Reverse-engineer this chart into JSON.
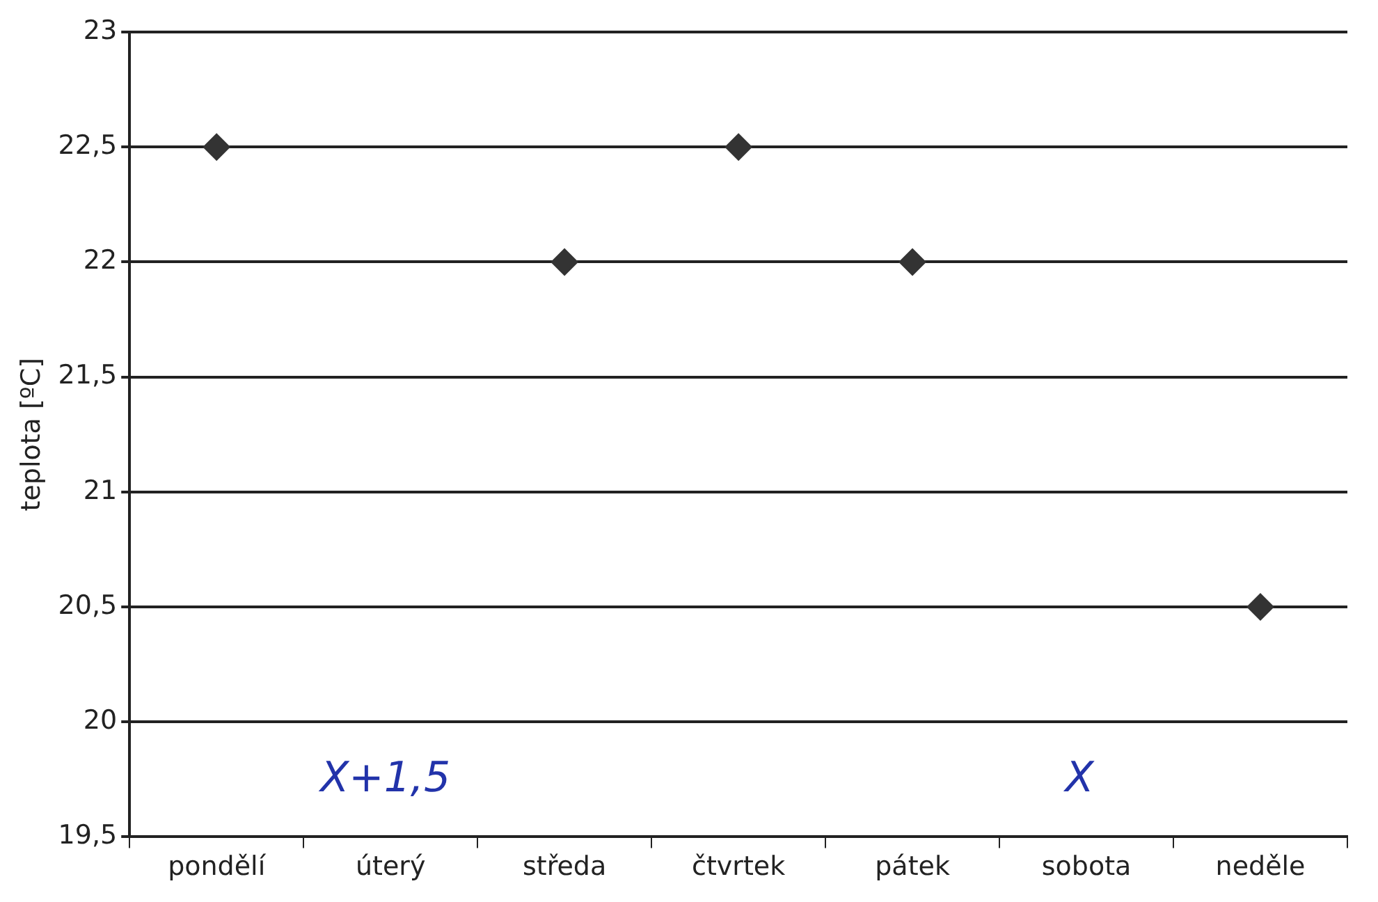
{
  "chart_data": {
    "type": "scatter",
    "ylabel": "teplota [ºC]",
    "categories": [
      "pondělí",
      "úterý",
      "středa",
      "čtvrtek",
      "pátek",
      "sobota",
      "neděle"
    ],
    "series": [
      {
        "color": "#333333",
        "values": [
          22.5,
          null,
          22.0,
          22.5,
          22.0,
          null,
          20.5
        ]
      }
    ],
    "ylim": [
      19.5,
      23
    ],
    "yticks": [
      {
        "value": 19.5,
        "label": "19,5"
      },
      20,
      {
        "value": 20.5,
        "label": "20,5"
      },
      21,
      {
        "value": 21.5,
        "label": "21,5"
      },
      22,
      {
        "value": 22.5,
        "label": "22,5"
      },
      23
    ],
    "grid": "y",
    "legend": false,
    "marker": "diamond",
    "annotations": [
      "X+1,5",
      "X"
    ]
  }
}
